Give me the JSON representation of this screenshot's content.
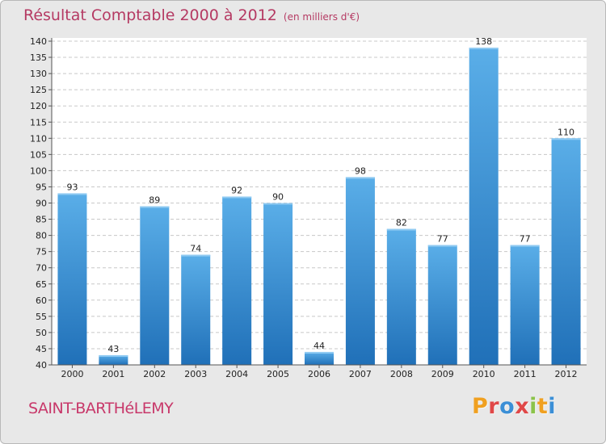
{
  "header": {
    "title": "Résultat Comptable 2000 à 2012",
    "subtitle": "(en milliers d'€)"
  },
  "footer": {
    "commune": "SAINT-BARTHéLEMY",
    "brand": "Proxiti",
    "brand_colors": [
      "#f0a020",
      "#e04848",
      "#3b8fd6",
      "#e04848",
      "#8bc34a",
      "#f0a020",
      "#3b8fd6"
    ]
  },
  "colors": {
    "background": "#e8e8e8",
    "bar_top": "#5aaee8",
    "bar_bottom": "#2070b8",
    "title": "#b53a63"
  },
  "chart_data": {
    "type": "bar",
    "title": "Résultat Comptable 2000 à 2012",
    "subtitle": "(en milliers d'€)",
    "xlabel": "",
    "ylabel": "",
    "categories": [
      "2000",
      "2001",
      "2002",
      "2003",
      "2004",
      "2005",
      "2006",
      "2007",
      "2008",
      "2009",
      "2010",
      "2011",
      "2012"
    ],
    "values": [
      93,
      43,
      89,
      74,
      92,
      90,
      44,
      98,
      82,
      77,
      138,
      77,
      110
    ],
    "ylim": [
      40,
      140
    ],
    "yticks": [
      40,
      45,
      50,
      55,
      60,
      65,
      70,
      75,
      80,
      85,
      90,
      95,
      100,
      105,
      110,
      115,
      120,
      125,
      130,
      135,
      140
    ],
    "grid": true
  }
}
